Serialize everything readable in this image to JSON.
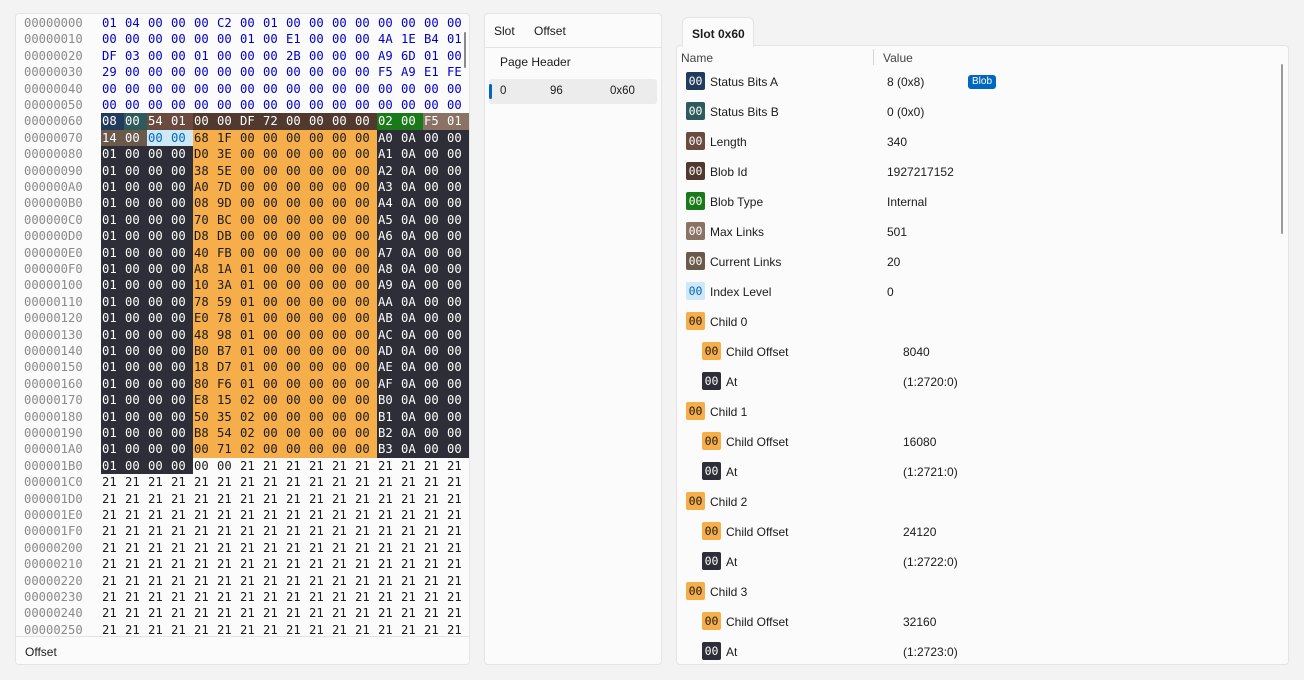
{
  "hex_view": {
    "offsets": [
      "00000000",
      "00000010",
      "00000020",
      "00000030",
      "00000040",
      "00000050",
      "00000060",
      "00000070",
      "00000080",
      "00000090",
      "000000A0",
      "000000B0",
      "000000C0",
      "000000D0",
      "000000E0",
      "000000F0",
      "00000100",
      "00000110",
      "00000120",
      "00000130",
      "00000140",
      "00000150",
      "00000160",
      "00000170",
      "00000180",
      "00000190",
      "000001A0",
      "000001B0",
      "000001C0",
      "000001D0",
      "000001E0",
      "000001F0",
      "00000200",
      "00000210",
      "00000220",
      "00000230",
      "00000240",
      "00000250"
    ],
    "rows": [
      [
        "01",
        "04",
        "00",
        "00",
        "00",
        "C2",
        "00",
        "01",
        "00",
        "00",
        "00",
        "00",
        "00",
        "00",
        "00",
        "00"
      ],
      [
        "00",
        "00",
        "00",
        "00",
        "00",
        "00",
        "01",
        "00",
        "E1",
        "00",
        "00",
        "00",
        "4A",
        "1E",
        "B4",
        "01"
      ],
      [
        "DF",
        "03",
        "00",
        "00",
        "01",
        "00",
        "00",
        "00",
        "2B",
        "00",
        "00",
        "00",
        "A9",
        "6D",
        "01",
        "00"
      ],
      [
        "29",
        "00",
        "00",
        "00",
        "00",
        "00",
        "00",
        "00",
        "00",
        "00",
        "00",
        "00",
        "F5",
        "A9",
        "E1",
        "FE"
      ],
      [
        "00",
        "00",
        "00",
        "00",
        "00",
        "00",
        "00",
        "00",
        "00",
        "00",
        "00",
        "00",
        "00",
        "00",
        "00",
        "00"
      ],
      [
        "00",
        "00",
        "00",
        "00",
        "00",
        "00",
        "00",
        "00",
        "00",
        "00",
        "00",
        "00",
        "00",
        "00",
        "00",
        "00"
      ],
      [
        "08",
        "00",
        "54",
        "01",
        "00",
        "00",
        "DF",
        "72",
        "00",
        "00",
        "00",
        "00",
        "02",
        "00",
        "F5",
        "01"
      ],
      [
        "14",
        "00",
        "00",
        "00",
        "68",
        "1F",
        "00",
        "00",
        "00",
        "00",
        "00",
        "00",
        "A0",
        "0A",
        "00",
        "00"
      ],
      [
        "01",
        "00",
        "00",
        "00",
        "D0",
        "3E",
        "00",
        "00",
        "00",
        "00",
        "00",
        "00",
        "A1",
        "0A",
        "00",
        "00"
      ],
      [
        "01",
        "00",
        "00",
        "00",
        "38",
        "5E",
        "00",
        "00",
        "00",
        "00",
        "00",
        "00",
        "A2",
        "0A",
        "00",
        "00"
      ],
      [
        "01",
        "00",
        "00",
        "00",
        "A0",
        "7D",
        "00",
        "00",
        "00",
        "00",
        "00",
        "00",
        "A3",
        "0A",
        "00",
        "00"
      ],
      [
        "01",
        "00",
        "00",
        "00",
        "08",
        "9D",
        "00",
        "00",
        "00",
        "00",
        "00",
        "00",
        "A4",
        "0A",
        "00",
        "00"
      ],
      [
        "01",
        "00",
        "00",
        "00",
        "70",
        "BC",
        "00",
        "00",
        "00",
        "00",
        "00",
        "00",
        "A5",
        "0A",
        "00",
        "00"
      ],
      [
        "01",
        "00",
        "00",
        "00",
        "D8",
        "DB",
        "00",
        "00",
        "00",
        "00",
        "00",
        "00",
        "A6",
        "0A",
        "00",
        "00"
      ],
      [
        "01",
        "00",
        "00",
        "00",
        "40",
        "FB",
        "00",
        "00",
        "00",
        "00",
        "00",
        "00",
        "A7",
        "0A",
        "00",
        "00"
      ],
      [
        "01",
        "00",
        "00",
        "00",
        "A8",
        "1A",
        "01",
        "00",
        "00",
        "00",
        "00",
        "00",
        "A8",
        "0A",
        "00",
        "00"
      ],
      [
        "01",
        "00",
        "00",
        "00",
        "10",
        "3A",
        "01",
        "00",
        "00",
        "00",
        "00",
        "00",
        "A9",
        "0A",
        "00",
        "00"
      ],
      [
        "01",
        "00",
        "00",
        "00",
        "78",
        "59",
        "01",
        "00",
        "00",
        "00",
        "00",
        "00",
        "AA",
        "0A",
        "00",
        "00"
      ],
      [
        "01",
        "00",
        "00",
        "00",
        "E0",
        "78",
        "01",
        "00",
        "00",
        "00",
        "00",
        "00",
        "AB",
        "0A",
        "00",
        "00"
      ],
      [
        "01",
        "00",
        "00",
        "00",
        "48",
        "98",
        "01",
        "00",
        "00",
        "00",
        "00",
        "00",
        "AC",
        "0A",
        "00",
        "00"
      ],
      [
        "01",
        "00",
        "00",
        "00",
        "B0",
        "B7",
        "01",
        "00",
        "00",
        "00",
        "00",
        "00",
        "AD",
        "0A",
        "00",
        "00"
      ],
      [
        "01",
        "00",
        "00",
        "00",
        "18",
        "D7",
        "01",
        "00",
        "00",
        "00",
        "00",
        "00",
        "AE",
        "0A",
        "00",
        "00"
      ],
      [
        "01",
        "00",
        "00",
        "00",
        "80",
        "F6",
        "01",
        "00",
        "00",
        "00",
        "00",
        "00",
        "AF",
        "0A",
        "00",
        "00"
      ],
      [
        "01",
        "00",
        "00",
        "00",
        "E8",
        "15",
        "02",
        "00",
        "00",
        "00",
        "00",
        "00",
        "B0",
        "0A",
        "00",
        "00"
      ],
      [
        "01",
        "00",
        "00",
        "00",
        "50",
        "35",
        "02",
        "00",
        "00",
        "00",
        "00",
        "00",
        "B1",
        "0A",
        "00",
        "00"
      ],
      [
        "01",
        "00",
        "00",
        "00",
        "B8",
        "54",
        "02",
        "00",
        "00",
        "00",
        "00",
        "00",
        "B2",
        "0A",
        "00",
        "00"
      ],
      [
        "01",
        "00",
        "00",
        "00",
        "00",
        "71",
        "02",
        "00",
        "00",
        "00",
        "00",
        "00",
        "B3",
        "0A",
        "00",
        "00"
      ],
      [
        "01",
        "00",
        "00",
        "00",
        "00",
        "00",
        "21",
        "21",
        "21",
        "21",
        "21",
        "21",
        "21",
        "21",
        "21",
        "21"
      ],
      [
        "21",
        "21",
        "21",
        "21",
        "21",
        "21",
        "21",
        "21",
        "21",
        "21",
        "21",
        "21",
        "21",
        "21",
        "21",
        "21"
      ],
      [
        "21",
        "21",
        "21",
        "21",
        "21",
        "21",
        "21",
        "21",
        "21",
        "21",
        "21",
        "21",
        "21",
        "21",
        "21",
        "21"
      ],
      [
        "21",
        "21",
        "21",
        "21",
        "21",
        "21",
        "21",
        "21",
        "21",
        "21",
        "21",
        "21",
        "21",
        "21",
        "21",
        "21"
      ],
      [
        "21",
        "21",
        "21",
        "21",
        "21",
        "21",
        "21",
        "21",
        "21",
        "21",
        "21",
        "21",
        "21",
        "21",
        "21",
        "21"
      ],
      [
        "21",
        "21",
        "21",
        "21",
        "21",
        "21",
        "21",
        "21",
        "21",
        "21",
        "21",
        "21",
        "21",
        "21",
        "21",
        "21"
      ],
      [
        "21",
        "21",
        "21",
        "21",
        "21",
        "21",
        "21",
        "21",
        "21",
        "21",
        "21",
        "21",
        "21",
        "21",
        "21",
        "21"
      ],
      [
        "21",
        "21",
        "21",
        "21",
        "21",
        "21",
        "21",
        "21",
        "21",
        "21",
        "21",
        "21",
        "21",
        "21",
        "21",
        "21"
      ],
      [
        "21",
        "21",
        "21",
        "21",
        "21",
        "21",
        "21",
        "21",
        "21",
        "21",
        "21",
        "21",
        "21",
        "21",
        "21",
        "21"
      ],
      [
        "21",
        "21",
        "21",
        "21",
        "21",
        "21",
        "21",
        "21",
        "21",
        "21",
        "21",
        "21",
        "21",
        "21",
        "21",
        "21"
      ],
      [
        "21",
        "21",
        "21",
        "21",
        "21",
        "21",
        "21",
        "21",
        "21",
        "21",
        "21",
        "21",
        "21",
        "21",
        "21",
        "21"
      ]
    ],
    "footer_label": "Offset"
  },
  "colors": {
    "header_text": "#0000c8",
    "status_a": "#223b5c",
    "status_b": "#2f5a5c",
    "length": "#6b4a3f",
    "blob_id": "#52392f",
    "blob_type": "#1a7a1a",
    "max_links": "#8a7265",
    "current_links": "#6a5a4c",
    "index_level": "#cfe8f5",
    "child_offset": "#f6ae4a",
    "at": "#2e2e38",
    "accent": "#0067c0"
  },
  "slot_list": {
    "columns": [
      "Slot",
      "Offset"
    ],
    "section_label": "Page Header",
    "selected_row": {
      "slot": "0",
      "offset_dec": "96",
      "offset_hex": "0x60"
    }
  },
  "detail": {
    "tab_label": "Slot 0x60",
    "col_name": "Name",
    "col_value": "Value",
    "badge_text": "00",
    "blob_chip": "Blob",
    "fields": [
      {
        "name": "Status Bits A",
        "value": "8 (0x8)",
        "color": "status_a",
        "indent": 0
      },
      {
        "name": "Status Bits B",
        "value": "0 (0x0)",
        "color": "status_b",
        "indent": 0
      },
      {
        "name": "Length",
        "value": "340",
        "color": "length",
        "indent": 0
      },
      {
        "name": "Blob Id",
        "value": "1927217152",
        "color": "blob_id",
        "indent": 0
      },
      {
        "name": "Blob Type",
        "value": "Internal",
        "color": "blob_type",
        "indent": 0
      },
      {
        "name": "Max Links",
        "value": "501",
        "color": "max_links",
        "indent": 0
      },
      {
        "name": "Current Links",
        "value": "20",
        "color": "current_links",
        "indent": 0
      },
      {
        "name": "Index Level",
        "value": "0",
        "color": "index_level",
        "indent": 0
      },
      {
        "name": "Child 0",
        "value": "",
        "color": "child_offset",
        "indent": 0
      },
      {
        "name": "Child Offset",
        "value": "8040",
        "color": "child_offset",
        "indent": 1
      },
      {
        "name": "At",
        "value": "(1:2720:0)",
        "color": "at",
        "indent": 1
      },
      {
        "name": "Child 1",
        "value": "",
        "color": "child_offset",
        "indent": 0
      },
      {
        "name": "Child Offset",
        "value": "16080",
        "color": "child_offset",
        "indent": 1
      },
      {
        "name": "At",
        "value": "(1:2721:0)",
        "color": "at",
        "indent": 1
      },
      {
        "name": "Child 2",
        "value": "",
        "color": "child_offset",
        "indent": 0
      },
      {
        "name": "Child Offset",
        "value": "24120",
        "color": "child_offset",
        "indent": 1
      },
      {
        "name": "At",
        "value": "(1:2722:0)",
        "color": "at",
        "indent": 1
      },
      {
        "name": "Child 3",
        "value": "",
        "color": "child_offset",
        "indent": 0
      },
      {
        "name": "Child Offset",
        "value": "32160",
        "color": "child_offset",
        "indent": 1
      },
      {
        "name": "At",
        "value": "(1:2723:0)",
        "color": "at",
        "indent": 1
      }
    ]
  }
}
